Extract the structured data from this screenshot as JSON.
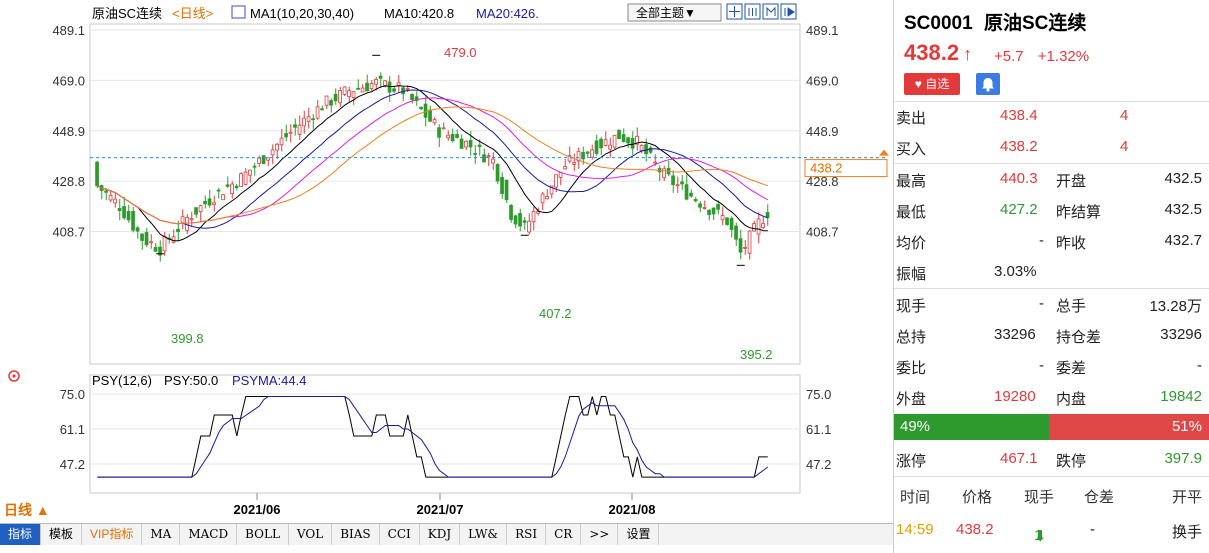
{
  "chart_header": {
    "symbol_name": "原油SC连续",
    "period_tag": "<日线>",
    "ma_label": "MA1(10,20,30,40)",
    "ma10": "MA10:420.8",
    "ma20": "MA20:426.",
    "theme_button": "全部主题▼"
  },
  "main_axis": {
    "ticks": [
      "489.1",
      "469.0",
      "448.9",
      "428.8",
      "408.7"
    ],
    "current_price_tag": "438.2"
  },
  "annotations": {
    "high": "479.0",
    "low1": "399.8",
    "low2": "407.2",
    "low3": "395.2"
  },
  "psy": {
    "label": "PSY(12,6)",
    "psy_value": "PSY:50.0",
    "psyma_value": "PSYMA:44.4",
    "ticks": [
      "75.0",
      "61.1",
      "47.2"
    ]
  },
  "date_axis": [
    "2021/06",
    "2021/07",
    "2021/08"
  ],
  "period_button": "日线 ▲",
  "tabs": [
    "指标",
    "模板",
    "VIP指标",
    "MA",
    "MACD",
    "BOLL",
    "VOL",
    "BIAS",
    "CCI",
    "KDJ",
    "LW&",
    "RSI",
    "CR",
    ">>",
    "设置"
  ],
  "colors": {
    "up": "#e23a3a",
    "down": "#2e9a2e",
    "ma10": "#000000",
    "ma20": "#1a1aa0",
    "ma30": "#e020e0",
    "ma40": "#f08020"
  },
  "quote": {
    "code": "SC0001",
    "name": "原油SC连续",
    "last": "438.2",
    "arrow": "↑",
    "change": "+5.7",
    "change_pct": "+1.32%",
    "fav_label": "♥ 自选",
    "sell_label": "卖出",
    "sell_price": "438.4",
    "sell_qty": "4",
    "buy_label": "买入",
    "buy_price": "438.2",
    "buy_qty": "4",
    "high_label": "最高",
    "high": "440.3",
    "open_label": "开盘",
    "open": "432.5",
    "low_label": "最低",
    "low": "427.2",
    "prev_settle_label": "昨结算",
    "prev_settle": "432.5",
    "avg_label": "均价",
    "avg": "-",
    "prev_close_label": "昨收",
    "prev_close": "432.7",
    "amp_label": "振幅",
    "amp": "3.03%",
    "now_vol_label": "现手",
    "now_vol": "-",
    "total_vol_label": "总手",
    "total_vol": "13.28万",
    "oi_label": "总持",
    "oi": "33296",
    "oi_diff_label": "持仓差",
    "oi_diff": "33296",
    "ratio_label": "委比",
    "ratio": "-",
    "diff_label": "委差",
    "diff": "-",
    "outer_label": "外盘",
    "outer": "19280",
    "inner_label": "内盘",
    "inner": "19842",
    "outer_pct": "49%",
    "inner_pct": "51%",
    "limit_up_label": "涨停",
    "limit_up": "467.1",
    "limit_down_label": "跌停",
    "limit_down": "397.9"
  },
  "trades": {
    "headers": [
      "时间",
      "价格",
      "现手",
      "仓差",
      "开平"
    ],
    "row": [
      "14:59",
      "438.2",
      "1",
      "-",
      "换手"
    ],
    "row_arrow": "⬇"
  }
}
